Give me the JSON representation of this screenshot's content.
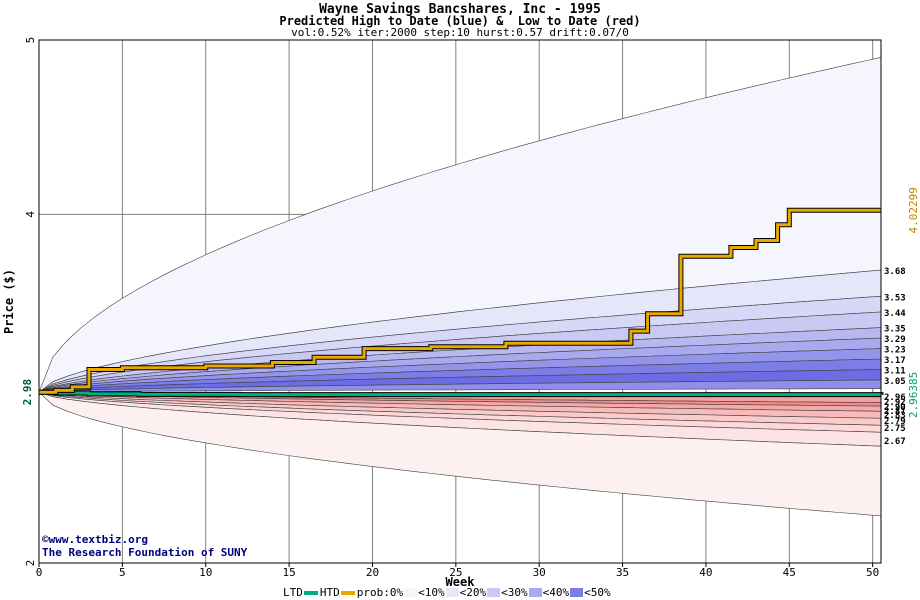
{
  "title": "Wayne Savings Bancshares, Inc - 1995",
  "subtitle": "Predicted High to Date (blue) &  Low to Date (red)",
  "params": "vol:0.52% iter:2000 step:10 hurst:0.57 drift:0.07/0",
  "credit": {
    "line1": "www.textbiz.org",
    "line2": "The Research Foundation of SUNY",
    "icon": "copyright-icon"
  },
  "legend": {
    "ltd": "LTD",
    "htd": "HTD",
    "prob": "prob:0%",
    "items": [
      {
        "label": "<10%",
        "color": "#f5f5fd"
      },
      {
        "label": "<20%",
        "color": "#e6e6fa"
      },
      {
        "label": "<30%",
        "color": "#c9c9f4"
      },
      {
        "label": "<40%",
        "color": "#a9a9ef"
      },
      {
        "label": "<50%",
        "color": "#7d7de8"
      }
    ],
    "ltd_color": "#00b080",
    "htd_color": "#e8a800"
  },
  "chart_data": {
    "type": "area",
    "title": "Wayne Savings Bancshares, Inc - 1995",
    "xlabel": "Week",
    "ylabel": "Price ($)",
    "xlim": [
      0,
      50.5
    ],
    "ylim": [
      2,
      5
    ],
    "x_ticks": [
      0,
      5,
      10,
      15,
      20,
      25,
      30,
      35,
      40,
      45,
      50
    ],
    "y_ticks": [
      2,
      4,
      5
    ],
    "start_price": 2.98,
    "start_label": "2.98",
    "upper_band_right_labels": [
      "3.68",
      "3.53",
      "3.44",
      "3.35",
      "3.29",
      "3.23",
      "3.17",
      "3.11",
      "3.05"
    ],
    "lower_band_right_labels": [
      "2.96",
      "2.92",
      "2.90",
      "2.87",
      "2.83",
      "2.79",
      "2.75",
      "2.67"
    ],
    "upper_band_end_values": [
      4.9,
      3.68,
      3.53,
      3.44,
      3.35,
      3.29,
      3.23,
      3.17,
      3.11,
      3.05,
      3.0
    ],
    "lower_band_end_values": [
      2.96,
      2.92,
      2.9,
      2.87,
      2.83,
      2.79,
      2.75,
      2.67,
      2.27
    ],
    "high_to_date": {
      "label": "4.02299",
      "final": 4.02299,
      "steps": [
        [
          0,
          2.98
        ],
        [
          1,
          2.99
        ],
        [
          2,
          3.01
        ],
        [
          3,
          3.11
        ],
        [
          5,
          3.12
        ],
        [
          10,
          3.13
        ],
        [
          14,
          3.15
        ],
        [
          16.5,
          3.18
        ],
        [
          19.5,
          3.23
        ],
        [
          23.5,
          3.24
        ],
        [
          28,
          3.26
        ],
        [
          35.5,
          3.33
        ],
        [
          36.5,
          3.43
        ],
        [
          38.5,
          3.76
        ],
        [
          41.5,
          3.81
        ],
        [
          43,
          3.85
        ],
        [
          44.3,
          3.94
        ],
        [
          45,
          4.02299
        ],
        [
          50.5,
          4.02299
        ]
      ]
    },
    "low_to_date": {
      "label": "2.96385",
      "final": 2.96385,
      "steps": [
        [
          0,
          2.98
        ],
        [
          1,
          2.975
        ],
        [
          3,
          2.97
        ],
        [
          6,
          2.967
        ],
        [
          12,
          2.966
        ],
        [
          50.5,
          2.96385
        ]
      ]
    }
  }
}
